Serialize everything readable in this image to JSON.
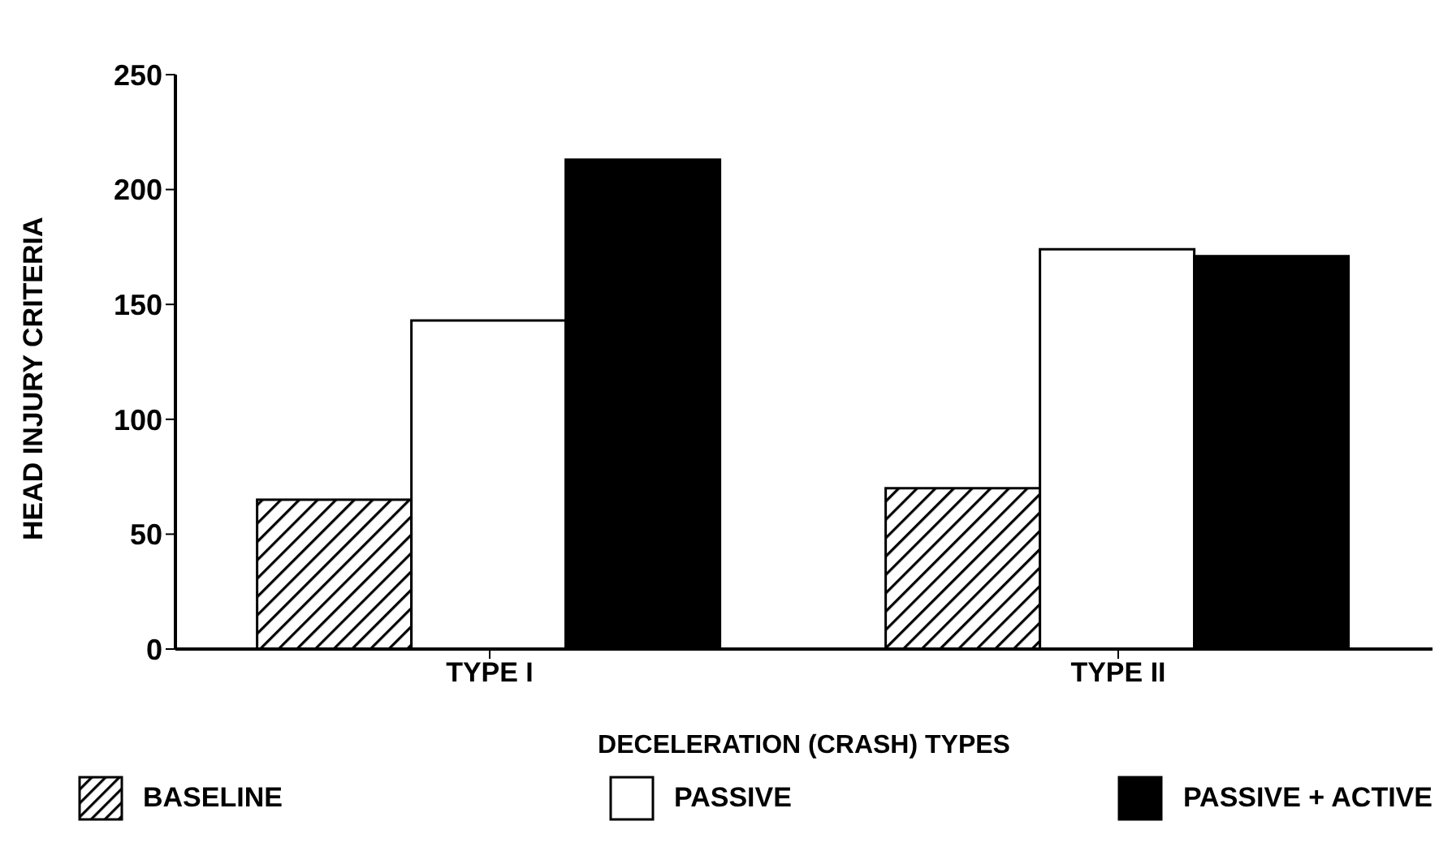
{
  "chart_data": {
    "type": "bar",
    "xlabel": "DECELERATION (CRASH) TYPES",
    "ylabel": "HEAD INJURY CRITERIA",
    "categories": [
      "TYPE I",
      "TYPE II"
    ],
    "series": [
      {
        "name": "BASELINE",
        "color": "#000000",
        "values": [
          65,
          70
        ]
      },
      {
        "name": "PASSIVE",
        "color": "#ffffff",
        "values": [
          143,
          174
        ]
      },
      {
        "name": "PASSIVE + ACTIVE",
        "color": "#000000",
        "values": [
          213,
          171
        ]
      }
    ],
    "ylim": [
      0,
      250
    ],
    "yticks": [
      0,
      50,
      100,
      150,
      200,
      250
    ],
    "grid": false,
    "legend": "bottom"
  }
}
